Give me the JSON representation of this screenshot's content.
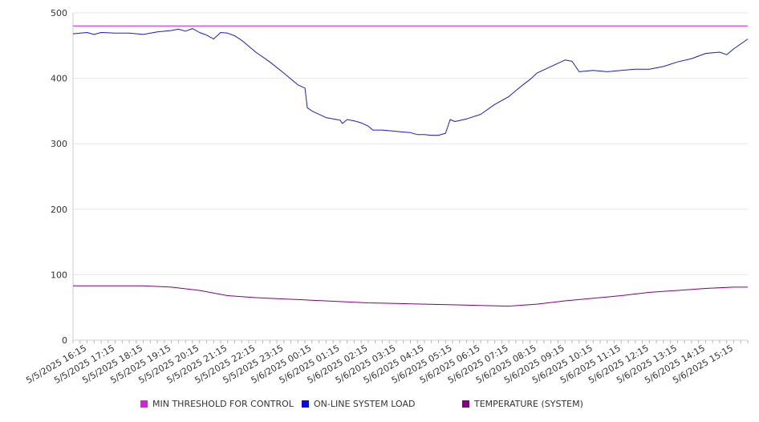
{
  "chart_data": {
    "type": "line",
    "title": "",
    "xlabel": "",
    "ylabel": "",
    "ylim": [
      0,
      500
    ],
    "yticks": [
      0,
      100,
      200,
      300,
      400,
      500
    ],
    "grid": true,
    "legend_position": "bottom",
    "x_tick_labels": [
      "5/5/2025 16:15",
      "5/5/2025 17:15",
      "5/5/2025 18:15",
      "5/5/2025 19:15",
      "5/5/2025 20:15",
      "5/5/2025 21:15",
      "5/5/2025 22:15",
      "5/5/2025 23:15",
      "5/6/2025 00:15",
      "5/6/2025 01:15",
      "5/6/2025 02:15",
      "5/6/2025 03:15",
      "5/6/2025 04:15",
      "5/6/2025 05:15",
      "5/6/2025 06:15",
      "5/6/2025 07:15",
      "5/6/2025 08:15",
      "5/6/2025 09:15",
      "5/6/2025 10:15",
      "5/6/2025 11:15",
      "5/6/2025 12:15",
      "5/6/2025 13:15",
      "5/6/2025 14:15",
      "5/6/2025 15:15"
    ],
    "x_range": [
      "5/5/2025 15:45",
      "5/6/2025 15:45"
    ],
    "series": [
      {
        "name": "MIN THRESHOLD FOR CONTROL",
        "color": "#d01ad0",
        "points": [
          [
            "5/5/2025 15:45",
            480
          ],
          [
            "5/6/2025 15:45",
            480
          ]
        ]
      },
      {
        "name": "ON-LINE SYSTEM LOAD",
        "color": "#1a1acc",
        "points": [
          [
            "5/5/2025 15:45",
            468
          ],
          [
            "5/5/2025 16:15",
            470
          ],
          [
            "5/5/2025 16:30",
            467
          ],
          [
            "5/5/2025 16:45",
            470
          ],
          [
            "5/5/2025 17:15",
            469
          ],
          [
            "5/5/2025 17:45",
            469
          ],
          [
            "5/5/2025 18:15",
            467
          ],
          [
            "5/5/2025 18:45",
            471
          ],
          [
            "5/5/2025 19:15",
            473
          ],
          [
            "5/5/2025 19:30",
            475
          ],
          [
            "5/5/2025 19:45",
            472
          ],
          [
            "5/5/2025 20:00",
            476
          ],
          [
            "5/5/2025 20:15",
            470
          ],
          [
            "5/5/2025 20:30",
            466
          ],
          [
            "5/5/2025 20:45",
            460
          ],
          [
            "5/5/2025 21:00",
            470
          ],
          [
            "5/5/2025 21:15",
            469
          ],
          [
            "5/5/2025 21:30",
            465
          ],
          [
            "5/5/2025 21:45",
            458
          ],
          [
            "5/5/2025 22:15",
            440
          ],
          [
            "5/5/2025 22:45",
            425
          ],
          [
            "5/5/2025 23:15",
            408
          ],
          [
            "5/5/2025 23:45",
            390
          ],
          [
            "5/6/2025 00:00",
            385
          ],
          [
            "5/6/2025 00:05",
            355
          ],
          [
            "5/6/2025 00:15",
            350
          ],
          [
            "5/6/2025 00:45",
            340
          ],
          [
            "5/6/2025 01:15",
            336
          ],
          [
            "5/6/2025 01:20",
            331
          ],
          [
            "5/6/2025 01:30",
            337
          ],
          [
            "5/6/2025 01:45",
            335
          ],
          [
            "5/6/2025 02:00",
            332
          ],
          [
            "5/6/2025 02:15",
            327
          ],
          [
            "5/6/2025 02:25",
            321
          ],
          [
            "5/6/2025 02:45",
            321
          ],
          [
            "5/6/2025 03:15",
            319
          ],
          [
            "5/6/2025 03:45",
            317
          ],
          [
            "5/6/2025 04:00",
            314
          ],
          [
            "5/6/2025 04:15",
            314
          ],
          [
            "5/6/2025 04:30",
            313
          ],
          [
            "5/6/2025 04:45",
            313
          ],
          [
            "5/6/2025 05:00",
            316
          ],
          [
            "5/6/2025 05:10",
            337
          ],
          [
            "5/6/2025 05:20",
            334
          ],
          [
            "5/6/2025 05:45",
            338
          ],
          [
            "5/6/2025 06:15",
            345
          ],
          [
            "5/6/2025 06:45",
            360
          ],
          [
            "5/6/2025 07:15",
            372
          ],
          [
            "5/6/2025 07:45",
            390
          ],
          [
            "5/6/2025 08:00",
            398
          ],
          [
            "5/6/2025 08:15",
            408
          ],
          [
            "5/6/2025 08:45",
            418
          ],
          [
            "5/6/2025 09:15",
            428
          ],
          [
            "5/6/2025 09:30",
            426
          ],
          [
            "5/6/2025 09:45",
            410
          ],
          [
            "5/6/2025 10:15",
            412
          ],
          [
            "5/6/2025 10:45",
            410
          ],
          [
            "5/6/2025 11:15",
            412
          ],
          [
            "5/6/2025 11:45",
            414
          ],
          [
            "5/6/2025 12:15",
            414
          ],
          [
            "5/6/2025 12:45",
            418
          ],
          [
            "5/6/2025 13:15",
            425
          ],
          [
            "5/6/2025 13:45",
            430
          ],
          [
            "5/6/2025 14:15",
            438
          ],
          [
            "5/6/2025 14:45",
            440
          ],
          [
            "5/6/2025 15:00",
            436
          ],
          [
            "5/6/2025 15:15",
            445
          ],
          [
            "5/6/2025 15:45",
            460
          ]
        ]
      },
      {
        "name": "TEMPERATURE (SYSTEM)",
        "color": "#800080",
        "points": [
          [
            "5/5/2025 15:45",
            83
          ],
          [
            "5/5/2025 17:15",
            83
          ],
          [
            "5/5/2025 18:15",
            83
          ],
          [
            "5/5/2025 19:15",
            81
          ],
          [
            "5/5/2025 20:15",
            76
          ],
          [
            "5/5/2025 21:15",
            68
          ],
          [
            "5/5/2025 22:15",
            65
          ],
          [
            "5/5/2025 23:15",
            63
          ],
          [
            "5/6/2025 00:15",
            61
          ],
          [
            "5/6/2025 01:15",
            59
          ],
          [
            "5/6/2025 02:15",
            57
          ],
          [
            "5/6/2025 03:15",
            56
          ],
          [
            "5/6/2025 04:15",
            55
          ],
          [
            "5/6/2025 05:15",
            54
          ],
          [
            "5/6/2025 06:15",
            53
          ],
          [
            "5/6/2025 07:15",
            52
          ],
          [
            "5/6/2025 08:15",
            55
          ],
          [
            "5/6/2025 09:15",
            60
          ],
          [
            "5/6/2025 10:15",
            64
          ],
          [
            "5/6/2025 11:15",
            68
          ],
          [
            "5/6/2025 12:15",
            73
          ],
          [
            "5/6/2025 13:15",
            76
          ],
          [
            "5/6/2025 14:15",
            79
          ],
          [
            "5/6/2025 15:15",
            81
          ],
          [
            "5/6/2025 15:45",
            81
          ]
        ]
      }
    ]
  }
}
